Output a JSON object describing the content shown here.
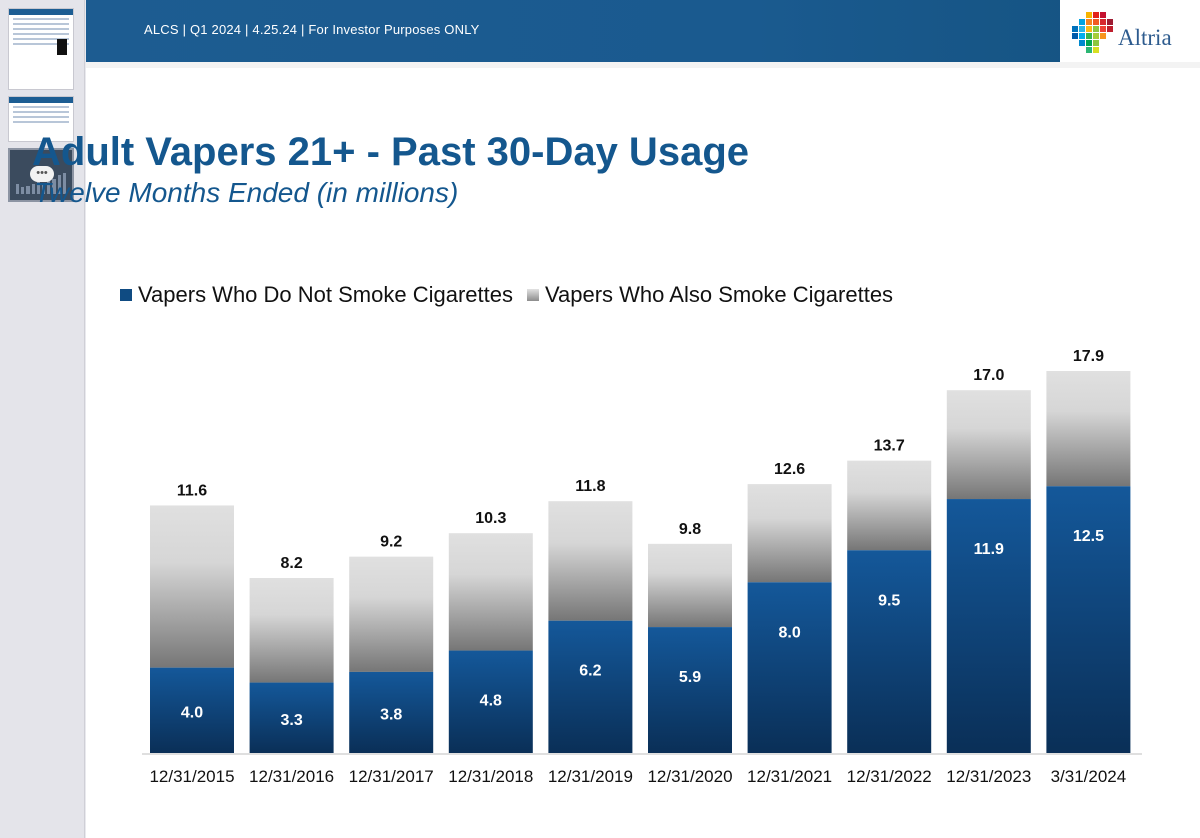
{
  "header": {
    "text": "ALCS | Q1 2024 | 4.25.24 | For Investor Purposes ONLY",
    "logo_text": "Altria"
  },
  "sidebar": {
    "thumb_menu_label": "•••"
  },
  "slide": {
    "title": "Adult Vapers 21+ - Past 30-Day Usage",
    "subtitle": "Twelve Months Ended (in millions)"
  },
  "colors": {
    "header_blue": "#1d5c91",
    "title_blue": "#14578e",
    "bar_blue_top": "#14589a",
    "bar_blue_bottom": "#0a2f57",
    "bar_gray_light": "#e0e0e0",
    "bar_gray_dark": "#767676"
  },
  "chart_data": {
    "type": "bar",
    "stacked": true,
    "title": "Adult Vapers 21+ - Past 30-Day Usage",
    "subtitle": "Twelve Months Ended (in millions)",
    "xlabel": "",
    "ylabel": "",
    "categories": [
      "12/31/2015",
      "12/31/2016",
      "12/31/2017",
      "12/31/2018",
      "12/31/2019",
      "12/31/2020",
      "12/31/2021",
      "12/31/2022",
      "12/31/2023",
      "3/31/2024"
    ],
    "series": [
      {
        "name": "Vapers Who Do Not Smoke Cigarettes",
        "values": [
          4.0,
          3.3,
          3.8,
          4.8,
          6.2,
          5.9,
          8.0,
          9.5,
          11.9,
          12.5
        ]
      },
      {
        "name": "Vapers Who Also Smoke Cigarettes",
        "values": [
          7.6,
          4.9,
          5.4,
          5.5,
          5.6,
          3.9,
          4.6,
          4.2,
          5.1,
          5.4
        ]
      }
    ],
    "totals": [
      11.6,
      8.2,
      9.2,
      10.3,
      11.8,
      9.8,
      12.6,
      13.7,
      17.0,
      17.9
    ],
    "segment_labels": [
      "4.0",
      "3.3",
      "3.8",
      "4.8",
      "6.2",
      "5.9",
      "8.0",
      "9.5",
      "11.9",
      "12.5"
    ],
    "total_labels": [
      "11.6",
      "8.2",
      "9.2",
      "10.3",
      "11.8",
      "9.8",
      "12.6",
      "13.7",
      "17.0",
      "17.9"
    ],
    "ylim": [
      0,
      17.9
    ],
    "grid": false,
    "legend_position": "top"
  }
}
